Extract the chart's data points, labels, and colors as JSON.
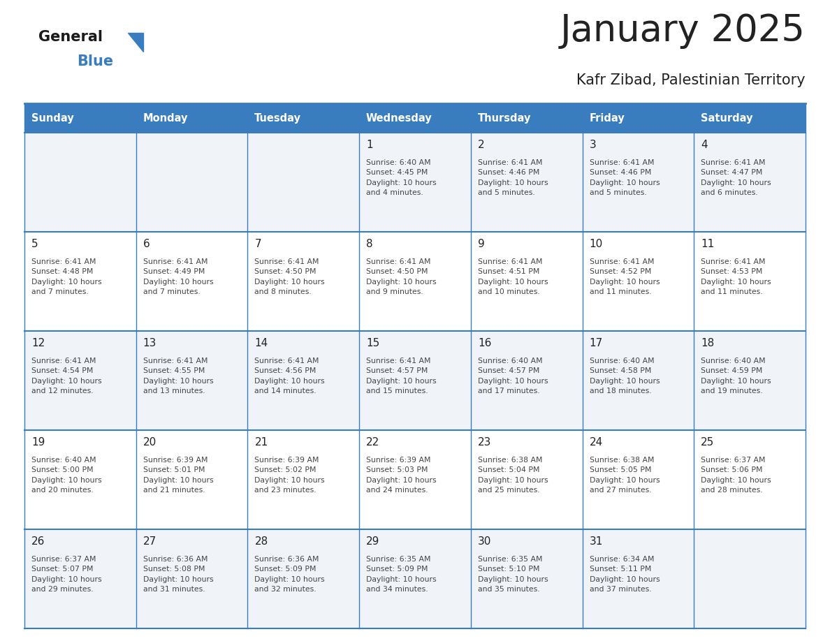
{
  "title": "January 2025",
  "subtitle": "Kafr Zibad, Palestinian Territory",
  "days_of_week": [
    "Sunday",
    "Monday",
    "Tuesday",
    "Wednesday",
    "Thursday",
    "Friday",
    "Saturday"
  ],
  "header_bg": "#3a7dbf",
  "header_text": "#ffffff",
  "cell_bg_odd": "#f0f4f8",
  "cell_bg_even": "#ffffff",
  "cell_border": "#3a7dbf",
  "title_color": "#222222",
  "subtitle_color": "#222222",
  "day_num_color": "#222222",
  "info_text_color": "#444444",
  "logo_black": "#1a1a1a",
  "logo_blue": "#3a7dbf",
  "calendar_data": [
    [
      {
        "day": "",
        "info": ""
      },
      {
        "day": "",
        "info": ""
      },
      {
        "day": "",
        "info": ""
      },
      {
        "day": "1",
        "info": "Sunrise: 6:40 AM\nSunset: 4:45 PM\nDaylight: 10 hours\nand 4 minutes."
      },
      {
        "day": "2",
        "info": "Sunrise: 6:41 AM\nSunset: 4:46 PM\nDaylight: 10 hours\nand 5 minutes."
      },
      {
        "day": "3",
        "info": "Sunrise: 6:41 AM\nSunset: 4:46 PM\nDaylight: 10 hours\nand 5 minutes."
      },
      {
        "day": "4",
        "info": "Sunrise: 6:41 AM\nSunset: 4:47 PM\nDaylight: 10 hours\nand 6 minutes."
      }
    ],
    [
      {
        "day": "5",
        "info": "Sunrise: 6:41 AM\nSunset: 4:48 PM\nDaylight: 10 hours\nand 7 minutes."
      },
      {
        "day": "6",
        "info": "Sunrise: 6:41 AM\nSunset: 4:49 PM\nDaylight: 10 hours\nand 7 minutes."
      },
      {
        "day": "7",
        "info": "Sunrise: 6:41 AM\nSunset: 4:50 PM\nDaylight: 10 hours\nand 8 minutes."
      },
      {
        "day": "8",
        "info": "Sunrise: 6:41 AM\nSunset: 4:50 PM\nDaylight: 10 hours\nand 9 minutes."
      },
      {
        "day": "9",
        "info": "Sunrise: 6:41 AM\nSunset: 4:51 PM\nDaylight: 10 hours\nand 10 minutes."
      },
      {
        "day": "10",
        "info": "Sunrise: 6:41 AM\nSunset: 4:52 PM\nDaylight: 10 hours\nand 11 minutes."
      },
      {
        "day": "11",
        "info": "Sunrise: 6:41 AM\nSunset: 4:53 PM\nDaylight: 10 hours\nand 11 minutes."
      }
    ],
    [
      {
        "day": "12",
        "info": "Sunrise: 6:41 AM\nSunset: 4:54 PM\nDaylight: 10 hours\nand 12 minutes."
      },
      {
        "day": "13",
        "info": "Sunrise: 6:41 AM\nSunset: 4:55 PM\nDaylight: 10 hours\nand 13 minutes."
      },
      {
        "day": "14",
        "info": "Sunrise: 6:41 AM\nSunset: 4:56 PM\nDaylight: 10 hours\nand 14 minutes."
      },
      {
        "day": "15",
        "info": "Sunrise: 6:41 AM\nSunset: 4:57 PM\nDaylight: 10 hours\nand 15 minutes."
      },
      {
        "day": "16",
        "info": "Sunrise: 6:40 AM\nSunset: 4:57 PM\nDaylight: 10 hours\nand 17 minutes."
      },
      {
        "day": "17",
        "info": "Sunrise: 6:40 AM\nSunset: 4:58 PM\nDaylight: 10 hours\nand 18 minutes."
      },
      {
        "day": "18",
        "info": "Sunrise: 6:40 AM\nSunset: 4:59 PM\nDaylight: 10 hours\nand 19 minutes."
      }
    ],
    [
      {
        "day": "19",
        "info": "Sunrise: 6:40 AM\nSunset: 5:00 PM\nDaylight: 10 hours\nand 20 minutes."
      },
      {
        "day": "20",
        "info": "Sunrise: 6:39 AM\nSunset: 5:01 PM\nDaylight: 10 hours\nand 21 minutes."
      },
      {
        "day": "21",
        "info": "Sunrise: 6:39 AM\nSunset: 5:02 PM\nDaylight: 10 hours\nand 23 minutes."
      },
      {
        "day": "22",
        "info": "Sunrise: 6:39 AM\nSunset: 5:03 PM\nDaylight: 10 hours\nand 24 minutes."
      },
      {
        "day": "23",
        "info": "Sunrise: 6:38 AM\nSunset: 5:04 PM\nDaylight: 10 hours\nand 25 minutes."
      },
      {
        "day": "24",
        "info": "Sunrise: 6:38 AM\nSunset: 5:05 PM\nDaylight: 10 hours\nand 27 minutes."
      },
      {
        "day": "25",
        "info": "Sunrise: 6:37 AM\nSunset: 5:06 PM\nDaylight: 10 hours\nand 28 minutes."
      }
    ],
    [
      {
        "day": "26",
        "info": "Sunrise: 6:37 AM\nSunset: 5:07 PM\nDaylight: 10 hours\nand 29 minutes."
      },
      {
        "day": "27",
        "info": "Sunrise: 6:36 AM\nSunset: 5:08 PM\nDaylight: 10 hours\nand 31 minutes."
      },
      {
        "day": "28",
        "info": "Sunrise: 6:36 AM\nSunset: 5:09 PM\nDaylight: 10 hours\nand 32 minutes."
      },
      {
        "day": "29",
        "info": "Sunrise: 6:35 AM\nSunset: 5:09 PM\nDaylight: 10 hours\nand 34 minutes."
      },
      {
        "day": "30",
        "info": "Sunrise: 6:35 AM\nSunset: 5:10 PM\nDaylight: 10 hours\nand 35 minutes."
      },
      {
        "day": "31",
        "info": "Sunrise: 6:34 AM\nSunset: 5:11 PM\nDaylight: 10 hours\nand 37 minutes."
      },
      {
        "day": "",
        "info": ""
      }
    ]
  ]
}
